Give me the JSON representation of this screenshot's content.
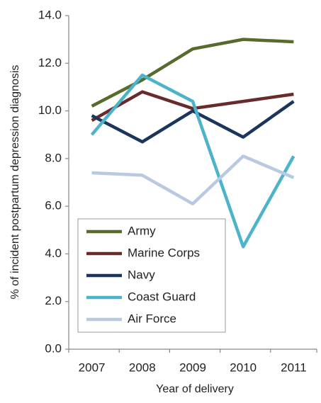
{
  "chart_data": {
    "type": "line",
    "xlabel": "Year of delivery",
    "ylabel": "% of incident postpartum depression diagnosis",
    "categories": [
      "2007",
      "2008",
      "2009",
      "2010",
      "2011"
    ],
    "series": [
      {
        "name": "Army",
        "color": "#566b2c",
        "values": [
          10.2,
          11.3,
          12.6,
          13.0,
          12.9
        ]
      },
      {
        "name": "Marine Corps",
        "color": "#682a2a",
        "values": [
          9.6,
          10.8,
          10.1,
          10.4,
          10.7
        ]
      },
      {
        "name": "Navy",
        "color": "#1b365c",
        "values": [
          9.8,
          8.7,
          10.0,
          8.9,
          10.4
        ]
      },
      {
        "name": "Coast Guard",
        "color": "#4cb3c9",
        "values": [
          9.0,
          11.5,
          10.4,
          4.3,
          8.1
        ]
      },
      {
        "name": "Air Force",
        "color": "#b9c9e1",
        "values": [
          7.4,
          7.3,
          6.1,
          8.1,
          7.2
        ]
      }
    ],
    "ylim": [
      0,
      14
    ],
    "yticks": [
      {
        "value": 0,
        "label": "0.0"
      },
      {
        "value": 2,
        "label": "2.0"
      },
      {
        "value": 4,
        "label": "4.0"
      },
      {
        "value": 6,
        "label": "6.0"
      },
      {
        "value": 8,
        "label": "8.0"
      },
      {
        "value": 10,
        "label": "10.0"
      },
      {
        "value": 12,
        "label": "12.0"
      },
      {
        "value": 14,
        "label": "14.0"
      }
    ],
    "grid": false,
    "legend_position": "lower left"
  }
}
